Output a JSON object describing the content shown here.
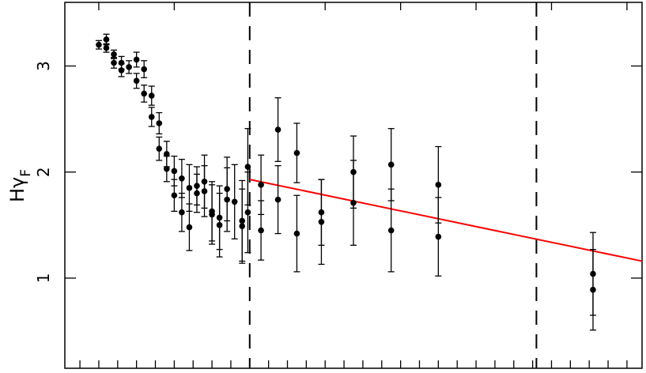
{
  "chart_data": {
    "type": "scatter",
    "title": "",
    "xlabel": "",
    "ylabel": "Hγ",
    "ylabel_subscript": "F",
    "xlim": [
      -4.9,
      10.4
    ],
    "ylim": [
      0.15,
      3.6
    ],
    "y_ticks": [
      1,
      2,
      3
    ],
    "y_tick_labels": [
      "1",
      "2",
      "3"
    ],
    "x_ticks": [
      -4.5,
      -4,
      -3.5,
      -3,
      -2.5,
      -2,
      -1.5,
      -1,
      -0.5,
      0,
      0.5,
      1,
      1.5,
      2,
      2.5,
      3,
      3.5,
      4,
      4.5,
      5,
      5.5,
      6,
      6.5,
      7,
      7.5,
      8,
      8.5,
      9,
      9.5,
      10
    ],
    "x_ticks_top": [
      -4,
      -2,
      0,
      2,
      4,
      6,
      8,
      10
    ],
    "vlines": [
      0,
      7.6
    ],
    "vline_color": "#000000",
    "series": [
      {
        "color": "#000000",
        "points": [
          {
            "x": -4.0,
            "y": 3.2,
            "err": 0.04
          },
          {
            "x": -3.8,
            "y": 3.25,
            "err": 0.05
          },
          {
            "x": -3.8,
            "y": 3.17,
            "err": 0.04
          },
          {
            "x": -3.6,
            "y": 3.11,
            "err": 0.04
          },
          {
            "x": -3.6,
            "y": 3.03,
            "err": 0.05
          },
          {
            "x": -3.4,
            "y": 3.03,
            "err": 0.06
          },
          {
            "x": -3.4,
            "y": 2.96,
            "err": 0.06
          },
          {
            "x": -3.2,
            "y": 2.99,
            "err": 0.06
          },
          {
            "x": -3.0,
            "y": 3.06,
            "err": 0.07
          },
          {
            "x": -3.0,
            "y": 2.86,
            "err": 0.07
          },
          {
            "x": -2.8,
            "y": 2.97,
            "err": 0.08
          },
          {
            "x": -2.8,
            "y": 2.74,
            "err": 0.08
          },
          {
            "x": -2.6,
            "y": 2.72,
            "err": 0.09
          },
          {
            "x": -2.6,
            "y": 2.52,
            "err": 0.09
          },
          {
            "x": -2.4,
            "y": 2.46,
            "err": 0.1
          },
          {
            "x": -2.4,
            "y": 2.22,
            "err": 0.11
          },
          {
            "x": -2.2,
            "y": 2.17,
            "err": 0.12
          },
          {
            "x": -2.2,
            "y": 2.03,
            "err": 0.12
          },
          {
            "x": -2.0,
            "y": 2.01,
            "err": 0.14
          },
          {
            "x": -2.0,
            "y": 1.78,
            "err": 0.15
          },
          {
            "x": -1.8,
            "y": 1.94,
            "err": 0.18
          },
          {
            "x": -1.8,
            "y": 1.62,
            "err": 0.18
          },
          {
            "x": -1.6,
            "y": 1.85,
            "err": 0.22
          },
          {
            "x": -1.6,
            "y": 1.48,
            "err": 0.22
          },
          {
            "x": -1.4,
            "y": 1.87,
            "err": 0.18
          },
          {
            "x": -1.4,
            "y": 1.8,
            "err": 0.18
          },
          {
            "x": -1.2,
            "y": 1.91,
            "err": 0.25
          },
          {
            "x": -1.2,
            "y": 1.82,
            "err": 0.24
          },
          {
            "x": -1.0,
            "y": 1.63,
            "err": 0.28
          },
          {
            "x": -1.0,
            "y": 1.6,
            "err": 0.28
          },
          {
            "x": -0.8,
            "y": 1.57,
            "err": 0.3
          },
          {
            "x": -0.8,
            "y": 1.5,
            "err": 0.3
          },
          {
            "x": -0.6,
            "y": 1.84,
            "err": 0.3
          },
          {
            "x": -0.6,
            "y": 1.74,
            "err": 0.3
          },
          {
            "x": -0.4,
            "y": 1.72,
            "err": 0.35
          },
          {
            "x": -0.2,
            "y": 1.54,
            "err": 0.38
          },
          {
            "x": -0.2,
            "y": 1.49,
            "err": 0.35
          },
          {
            "x": -0.05,
            "y": 2.05,
            "err": 0.36
          },
          {
            "x": -0.05,
            "y": 1.62,
            "err": 0.38
          },
          {
            "x": 0.3,
            "y": 1.88,
            "err": 0.28
          },
          {
            "x": 0.3,
            "y": 1.45,
            "err": 0.28
          },
          {
            "x": 0.75,
            "y": 2.4,
            "err": 0.3
          },
          {
            "x": 0.75,
            "y": 1.74,
            "err": 0.32
          },
          {
            "x": 1.25,
            "y": 2.18,
            "err": 0.28
          },
          {
            "x": 1.25,
            "y": 1.42,
            "err": 0.36
          },
          {
            "x": 1.9,
            "y": 1.62,
            "err": 0.31
          },
          {
            "x": 1.9,
            "y": 1.53,
            "err": 0.4
          },
          {
            "x": 2.75,
            "y": 2.0,
            "err": 0.34
          },
          {
            "x": 2.75,
            "y": 1.71,
            "err": 0.4
          },
          {
            "x": 3.75,
            "y": 2.07,
            "err": 0.34
          },
          {
            "x": 3.75,
            "y": 1.45,
            "err": 0.39
          },
          {
            "x": 5.0,
            "y": 1.88,
            "err": 0.36
          },
          {
            "x": 5.0,
            "y": 1.39,
            "err": 0.37
          },
          {
            "x": 9.1,
            "y": 1.04,
            "err": 0.39
          },
          {
            "x": 9.1,
            "y": 0.89,
            "err": 0.38
          }
        ]
      }
    ],
    "fit_line": {
      "color": "#ff0000",
      "x": [
        0,
        10.4
      ],
      "y": [
        1.93,
        1.16
      ]
    }
  }
}
